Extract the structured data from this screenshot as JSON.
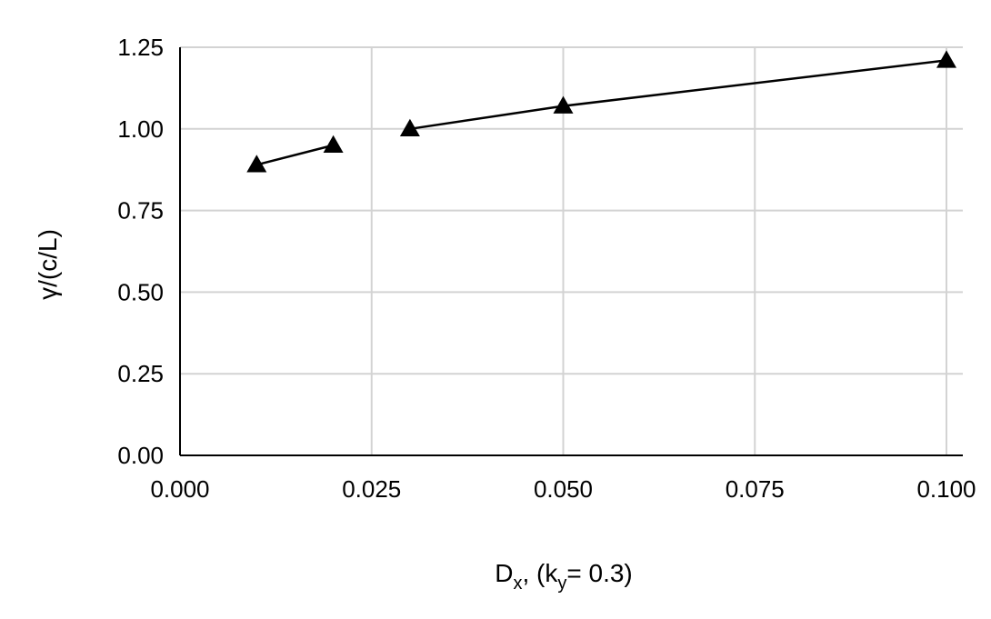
{
  "chart_data": {
    "type": "line",
    "xlabel_parts": {
      "d": "D",
      "d_sub": "x",
      "mid": ", (k",
      "k_sub": "y",
      "tail": "= 0.3)"
    },
    "ylabel": "γ/(c/L)",
    "x_ticks": [
      "0.000",
      "0.025",
      "0.050",
      "0.075",
      "0.100"
    ],
    "y_ticks": [
      "0.00",
      "0.25",
      "0.50",
      "0.75",
      "1.00",
      "1.25"
    ],
    "x_tick_values": [
      0,
      1,
      2,
      3,
      4
    ],
    "y_tick_values": [
      0,
      0.25,
      0.5,
      0.75,
      1.0,
      1.25
    ],
    "xlim": [
      0,
      4
    ],
    "ylim": [
      0,
      1.25
    ],
    "grid": true,
    "marker": "triangle",
    "color": "#000000",
    "segments": [
      {
        "x_labels": [
          "0.010",
          "0.020"
        ],
        "x": [
          0.4,
          0.8
        ],
        "y": [
          0.89,
          0.95
        ]
      },
      {
        "x_labels": [
          "0.030",
          "0.050",
          "0.100"
        ],
        "x": [
          1.2,
          2.0,
          4.0
        ],
        "y": [
          1.0,
          1.07,
          1.21
        ]
      }
    ]
  }
}
